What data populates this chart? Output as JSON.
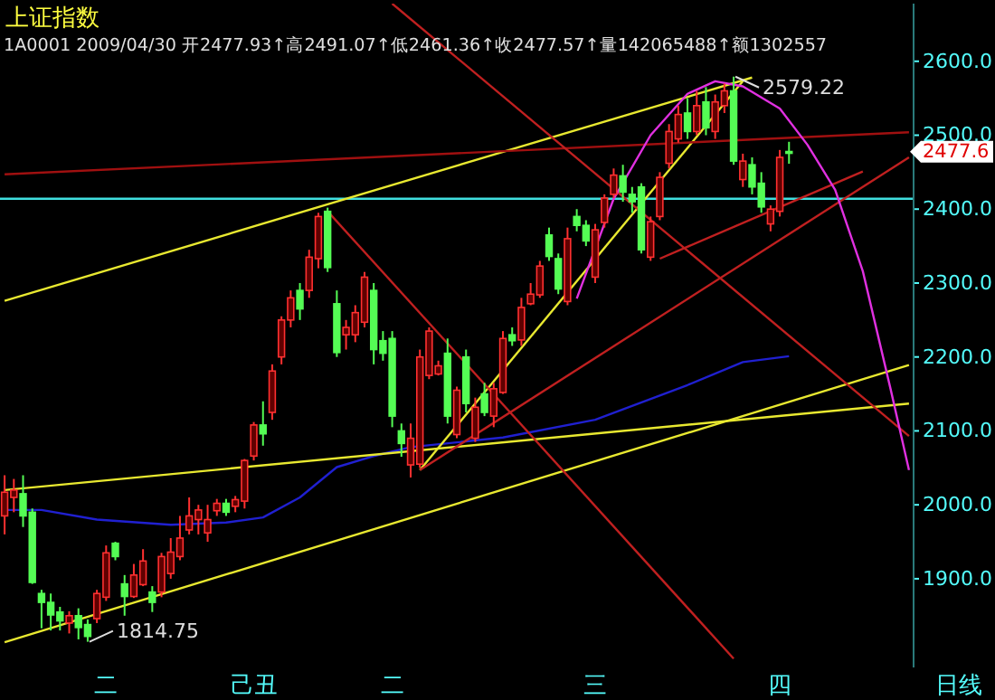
{
  "chart_data": {
    "type": "candlestick",
    "title": "上证指数",
    "subtitle": "1A0001 2009/04/30 开2477.93↑高2491.07↑低2461.36↑收2477.57↑量142065488↑额1302557",
    "categories": [
      null,
      null,
      null,
      null,
      null,
      null,
      null,
      null,
      null,
      null,
      null,
      "二",
      null,
      null,
      null,
      null,
      null,
      null,
      null,
      null,
      null,
      null,
      null,
      null,
      null,
      null,
      null,
      "己丑",
      null,
      null,
      null,
      null,
      null,
      null,
      null,
      null,
      null,
      null,
      null,
      null,
      null,
      null,
      "二",
      null,
      null,
      null,
      null,
      null,
      null,
      null,
      null,
      null,
      null,
      null,
      null,
      null,
      null,
      null,
      null,
      null,
      null,
      null,
      null,
      null,
      "三",
      null,
      null,
      null,
      null,
      null,
      null,
      null,
      null,
      null,
      null,
      null,
      null,
      null,
      null,
      null,
      null,
      null,
      null,
      null,
      "四",
      null,
      null,
      null,
      null,
      null,
      null,
      null,
      null,
      null,
      null,
      null,
      null,
      null,
      null
    ],
    "ohlc": [
      [
        1985,
        2040,
        1960,
        2017
      ],
      [
        2010,
        2035,
        1990,
        2020
      ],
      [
        2015,
        2040,
        1970,
        1985
      ],
      [
        1990,
        1995,
        1893,
        1895
      ],
      [
        1880,
        1885,
        1833,
        1868
      ],
      [
        1868,
        1880,
        1830,
        1851
      ],
      [
        1855,
        1862,
        1830,
        1843
      ],
      [
        1840,
        1856,
        1826,
        1850
      ],
      [
        1850,
        1860,
        1818,
        1834
      ],
      [
        1838,
        1845,
        1814.75,
        1822
      ],
      [
        1846,
        1885,
        1840,
        1880
      ],
      [
        1875,
        1945,
        1870,
        1935
      ],
      [
        1948,
        1950,
        1925,
        1930
      ],
      [
        1893,
        1905,
        1850,
        1876
      ],
      [
        1876,
        1920,
        1874,
        1905
      ],
      [
        1892,
        1940,
        1890,
        1924
      ],
      [
        1882,
        1890,
        1855,
        1868
      ],
      [
        1882,
        1935,
        1875,
        1930
      ],
      [
        1907,
        1955,
        1900,
        1936
      ],
      [
        1930,
        1985,
        1925,
        1955
      ],
      [
        1966,
        2010,
        1960,
        1985
      ],
      [
        1980,
        2000,
        1960,
        1993
      ],
      [
        1962,
        2000,
        1950,
        1980
      ],
      [
        1992,
        2008,
        1985,
        2002
      ],
      [
        2002,
        2008,
        1985,
        1990
      ],
      [
        1998,
        2012,
        1990,
        2007
      ],
      [
        2005,
        2062,
        1995,
        2060
      ],
      [
        2066,
        2112,
        2060,
        2108
      ],
      [
        2108,
        2140,
        2080,
        2096
      ],
      [
        2125,
        2190,
        2115,
        2181
      ],
      [
        2200,
        2255,
        2190,
        2250
      ],
      [
        2250,
        2290,
        2240,
        2280
      ],
      [
        2290,
        2300,
        2250,
        2265
      ],
      [
        2290,
        2345,
        2280,
        2335
      ],
      [
        2333,
        2395,
        2320,
        2390
      ],
      [
        2397,
        2402,
        2315,
        2321
      ],
      [
        2272,
        2290,
        2200,
        2206
      ],
      [
        2230,
        2250,
        2210,
        2240
      ],
      [
        2230,
        2270,
        2220,
        2260
      ],
      [
        2247,
        2315,
        2240,
        2308
      ],
      [
        2290,
        2300,
        2190,
        2210
      ],
      [
        2222,
        2235,
        2195,
        2205
      ],
      [
        2225,
        2235,
        2105,
        2120
      ],
      [
        2100,
        2110,
        2065,
        2083
      ],
      [
        2054,
        2110,
        2037,
        2090
      ],
      [
        2055,
        2210,
        2050,
        2200
      ],
      [
        2175,
        2240,
        2170,
        2235
      ],
      [
        2177,
        2195,
        2175,
        2188
      ],
      [
        2205,
        2225,
        2110,
        2120
      ],
      [
        2095,
        2160,
        2090,
        2155
      ],
      [
        2200,
        2210,
        2125,
        2137
      ],
      [
        2090,
        2145,
        2085,
        2132
      ],
      [
        2150,
        2165,
        2120,
        2125
      ],
      [
        2120,
        2165,
        2105,
        2157
      ],
      [
        2152,
        2235,
        2150,
        2225
      ],
      [
        2230,
        2240,
        2215,
        2222
      ],
      [
        2223,
        2280,
        2215,
        2267
      ],
      [
        2272,
        2300,
        2270,
        2285
      ],
      [
        2284,
        2330,
        2280,
        2323
      ],
      [
        2365,
        2375,
        2330,
        2336
      ],
      [
        2333,
        2340,
        2285,
        2292
      ],
      [
        2275,
        2375,
        2270,
        2360
      ],
      [
        2390,
        2400,
        2370,
        2378
      ],
      [
        2378,
        2385,
        2350,
        2357
      ],
      [
        2308,
        2380,
        2300,
        2372
      ],
      [
        2382,
        2420,
        2375,
        2415
      ],
      [
        2420,
        2455,
        2415,
        2446
      ],
      [
        2445,
        2460,
        2410,
        2423
      ],
      [
        2420,
        2430,
        2395,
        2410
      ],
      [
        2430,
        2435,
        2340,
        2345
      ],
      [
        2335,
        2390,
        2330,
        2383
      ],
      [
        2390,
        2450,
        2385,
        2443
      ],
      [
        2462,
        2515,
        2455,
        2505
      ],
      [
        2495,
        2540,
        2490,
        2528
      ],
      [
        2530,
        2550,
        2495,
        2505
      ],
      [
        2505,
        2560,
        2500,
        2540
      ],
      [
        2545,
        2565,
        2500,
        2510
      ],
      [
        2505,
        2555,
        2495,
        2545
      ],
      [
        2540,
        2570,
        2530,
        2560
      ],
      [
        2560,
        2579.22,
        2460,
        2465
      ],
      [
        2440,
        2475,
        2430,
        2465
      ],
      [
        2460,
        2470,
        2420,
        2430
      ],
      [
        2435,
        2450,
        2395,
        2403
      ],
      [
        2380,
        2405,
        2370,
        2400
      ],
      [
        2397,
        2480,
        2390,
        2470
      ],
      [
        2477.93,
        2491.07,
        2461.36,
        2477.57
      ],
      null,
      null,
      null,
      null,
      null,
      null,
      null,
      null,
      null,
      null,
      null,
      null,
      null
    ],
    "series": [
      {
        "type": "line",
        "color": "#2020d0",
        "values": [
          1993,
          null,
          null,
          null,
          1993,
          null,
          null,
          null,
          null,
          null,
          1980,
          null,
          null,
          null,
          null,
          null,
          null,
          null,
          1973,
          null,
          null,
          null,
          null,
          null,
          1976,
          null,
          null,
          null,
          1983,
          null,
          null,
          null,
          2010,
          null,
          null,
          null,
          2051,
          null,
          null,
          null,
          2066,
          null,
          null,
          null,
          2078,
          null,
          null,
          null,
          null,
          null,
          null,
          null,
          null,
          null,
          2091,
          null,
          null,
          null,
          null,
          null,
          null,
          null,
          null,
          null,
          2115,
          null,
          null,
          null,
          null,
          null,
          null,
          null,
          null,
          null,
          2162,
          null,
          null,
          null,
          null,
          null,
          2193,
          null,
          null,
          null,
          null,
          2201,
          null,
          null,
          null,
          null,
          null,
          null,
          null,
          null,
          null,
          null,
          null,
          null,
          null
        ]
      },
      {
        "type": "line",
        "color": "#e8e830",
        "values": [
          2020,
          null,
          null,
          null,
          null,
          null,
          null,
          null,
          null,
          null,
          null,
          null,
          null,
          null,
          null,
          null,
          null,
          null,
          null,
          null,
          null,
          null,
          null,
          null,
          null,
          null,
          null,
          null,
          null,
          null,
          null,
          null,
          null,
          null,
          null,
          null,
          null,
          null,
          null,
          null,
          null,
          null,
          null,
          null,
          null,
          null,
          null,
          null,
          null,
          null,
          null,
          null,
          null,
          null,
          null,
          null,
          null,
          null,
          null,
          null,
          null,
          null,
          null,
          null,
          null,
          null,
          null,
          null,
          null,
          null,
          null,
          null,
          null,
          null,
          null,
          null,
          null,
          null,
          null,
          null,
          null,
          null,
          null,
          null,
          null,
          null,
          null,
          null,
          null,
          null,
          null,
          null,
          null,
          null,
          null,
          null,
          null,
          null,
          2137
        ]
      },
      {
        "type": "line",
        "color": "#e8e830",
        "values": [
          1814,
          null,
          null,
          null,
          null,
          null,
          null,
          null,
          null,
          null,
          null,
          null,
          null,
          null,
          null,
          null,
          null,
          null,
          null,
          null,
          null,
          null,
          null,
          null,
          null,
          null,
          null,
          null,
          null,
          null,
          null,
          null,
          null,
          null,
          null,
          null,
          null,
          null,
          null,
          null,
          null,
          null,
          null,
          null,
          null,
          null,
          null,
          null,
          null,
          null,
          null,
          null,
          null,
          null,
          null,
          null,
          null,
          null,
          null,
          null,
          null,
          null,
          null,
          null,
          null,
          null,
          null,
          null,
          null,
          null,
          null,
          null,
          null,
          null,
          null,
          null,
          null,
          null,
          null,
          null,
          null,
          null,
          null,
          null,
          null,
          null,
          null,
          null,
          null,
          null,
          null,
          null,
          null,
          null,
          null,
          null,
          null,
          null,
          2189
        ]
      },
      {
        "type": "line",
        "color": "#e8e830",
        "values": [
          2276,
          null,
          null,
          null,
          null,
          null,
          null,
          null,
          null,
          null,
          null,
          null,
          null,
          null,
          null,
          null,
          null,
          null,
          null,
          null,
          null,
          null,
          null,
          null,
          null,
          null,
          null,
          null,
          null,
          null,
          null,
          null,
          null,
          null,
          null,
          null,
          null,
          null,
          null,
          null,
          null,
          null,
          null,
          null,
          null,
          null,
          null,
          null,
          null,
          null,
          null,
          null,
          null,
          null,
          null,
          null,
          null,
          null,
          null,
          null,
          null,
          null,
          null,
          null,
          null,
          null,
          null,
          null,
          null,
          null,
          null,
          null,
          null,
          null,
          null,
          null,
          null,
          null,
          null,
          null,
          null,
          2578,
          null,
          null,
          null,
          null,
          null,
          null,
          null,
          null,
          null,
          null,
          null,
          null,
          null,
          null,
          null,
          null,
          null
        ]
      },
      {
        "type": "line",
        "color": "#e8e830",
        "values": [
          null,
          null,
          null,
          null,
          null,
          null,
          null,
          null,
          null,
          null,
          null,
          null,
          null,
          null,
          null,
          null,
          null,
          null,
          null,
          null,
          null,
          null,
          null,
          null,
          null,
          null,
          null,
          null,
          null,
          null,
          null,
          null,
          null,
          null,
          null,
          null,
          null,
          null,
          null,
          null,
          null,
          null,
          null,
          null,
          null,
          2047,
          null,
          null,
          null,
          null,
          null,
          null,
          null,
          null,
          null,
          null,
          null,
          null,
          null,
          null,
          null,
          null,
          null,
          null,
          null,
          null,
          null,
          null,
          null,
          null,
          null,
          null,
          null,
          null,
          null,
          null,
          null,
          null,
          null,
          null,
          2573,
          null,
          null,
          null,
          null,
          null,
          null,
          null,
          null,
          null,
          null,
          null,
          null,
          null,
          null,
          null,
          null,
          null,
          null
        ]
      },
      {
        "type": "line",
        "color": "#a01010",
        "values": [
          2447,
          null,
          null,
          null,
          null,
          null,
          null,
          null,
          null,
          null,
          null,
          null,
          null,
          null,
          null,
          null,
          null,
          null,
          null,
          null,
          null,
          null,
          null,
          null,
          null,
          null,
          null,
          null,
          null,
          null,
          null,
          null,
          null,
          null,
          null,
          null,
          null,
          null,
          null,
          null,
          null,
          null,
          null,
          null,
          null,
          null,
          null,
          null,
          null,
          null,
          null,
          null,
          null,
          null,
          null,
          null,
          null,
          null,
          null,
          null,
          null,
          null,
          null,
          null,
          null,
          null,
          null,
          null,
          null,
          null,
          null,
          null,
          null,
          null,
          null,
          null,
          null,
          null,
          null,
          null,
          null,
          null,
          null,
          null,
          null,
          null,
          null,
          null,
          null,
          null,
          null,
          null,
          null,
          null,
          null,
          null,
          null,
          null,
          2504
        ]
      },
      {
        "type": "line",
        "color": "#c02020",
        "values": [
          null,
          null,
          null,
          null,
          null,
          null,
          null,
          null,
          null,
          null,
          null,
          null,
          null,
          null,
          null,
          null,
          null,
          null,
          null,
          null,
          null,
          null,
          null,
          null,
          null,
          null,
          null,
          null,
          null,
          null,
          null,
          null,
          null,
          null,
          null,
          2397,
          null,
          null,
          null,
          null,
          null,
          null,
          null,
          null,
          null,
          null,
          null,
          null,
          null,
          null,
          null,
          null,
          null,
          null,
          null,
          null,
          null,
          null,
          null,
          null,
          null,
          null,
          null,
          null,
          null,
          null,
          null,
          null,
          null,
          null,
          null,
          null,
          null,
          null,
          null,
          null,
          null,
          null,
          null,
          1792,
          null,
          null,
          null,
          null,
          null,
          null,
          null,
          null,
          null,
          null,
          null,
          null,
          null,
          null,
          null,
          null,
          null,
          null,
          null
        ]
      },
      {
        "type": "line",
        "color": "#c02020",
        "values": [
          null,
          null,
          null,
          null,
          null,
          null,
          null,
          null,
          null,
          null,
          null,
          null,
          null,
          null,
          null,
          null,
          null,
          null,
          null,
          null,
          null,
          null,
          null,
          null,
          null,
          null,
          null,
          null,
          null,
          null,
          null,
          null,
          null,
          null,
          null,
          null,
          null,
          null,
          null,
          null,
          null,
          null,
          null,
          null,
          null,
          2047,
          null,
          null,
          null,
          null,
          null,
          null,
          null,
          null,
          null,
          null,
          null,
          null,
          null,
          null,
          null,
          null,
          null,
          null,
          null,
          null,
          null,
          null,
          null,
          null,
          null,
          null,
          null,
          null,
          null,
          null,
          null,
          null,
          null,
          null,
          null,
          null,
          null,
          null,
          null,
          null,
          null,
          null,
          null,
          null,
          null,
          null,
          null,
          null,
          null,
          null,
          null,
          null,
          2470
        ]
      },
      {
        "type": "line",
        "color": "#c02020",
        "values": [
          null,
          null,
          null,
          null,
          null,
          null,
          null,
          null,
          null,
          null,
          null,
          null,
          null,
          null,
          null,
          null,
          null,
          null,
          null,
          null,
          null,
          null,
          null,
          null,
          null,
          null,
          null,
          null,
          null,
          null,
          null,
          null,
          null,
          null,
          null,
          null,
          null,
          null,
          null,
          null,
          null,
          null,
          2678,
          null,
          null,
          null,
          null,
          null,
          null,
          null,
          null,
          null,
          null,
          null,
          null,
          null,
          null,
          null,
          null,
          null,
          null,
          null,
          null,
          null,
          null,
          null,
          null,
          null,
          null,
          null,
          null,
          null,
          null,
          null,
          null,
          null,
          null,
          null,
          null,
          null,
          null,
          null,
          null,
          null,
          null,
          null,
          null,
          null,
          null,
          null,
          null,
          null,
          null,
          null,
          null,
          null,
          null,
          null,
          2093
        ]
      },
      {
        "type": "line",
        "color": "#c02020",
        "values": [
          null,
          null,
          null,
          null,
          null,
          null,
          null,
          null,
          null,
          null,
          null,
          null,
          null,
          null,
          null,
          null,
          null,
          null,
          null,
          null,
          null,
          null,
          null,
          null,
          null,
          null,
          null,
          null,
          null,
          null,
          null,
          null,
          null,
          null,
          null,
          null,
          null,
          null,
          null,
          null,
          null,
          null,
          null,
          null,
          null,
          null,
          null,
          null,
          null,
          null,
          null,
          null,
          null,
          null,
          null,
          null,
          null,
          null,
          null,
          null,
          null,
          null,
          null,
          null,
          null,
          null,
          null,
          null,
          null,
          null,
          null,
          2333,
          null,
          null,
          null,
          null,
          null,
          null,
          null,
          null,
          null,
          null,
          null,
          null,
          null,
          null,
          null,
          null,
          null,
          null,
          null,
          null,
          null,
          2451,
          null,
          null,
          null,
          null,
          null
        ]
      },
      {
        "type": "line",
        "color": "#e030e0",
        "values": [
          null,
          null,
          null,
          null,
          null,
          null,
          null,
          null,
          null,
          null,
          null,
          null,
          null,
          null,
          null,
          null,
          null,
          null,
          null,
          null,
          null,
          null,
          null,
          null,
          null,
          null,
          null,
          null,
          null,
          null,
          null,
          null,
          null,
          null,
          null,
          null,
          null,
          null,
          null,
          null,
          null,
          null,
          null,
          null,
          null,
          null,
          null,
          null,
          null,
          null,
          null,
          null,
          null,
          null,
          null,
          null,
          null,
          null,
          null,
          null,
          null,
          null,
          2279,
          null,
          null,
          null,
          2414,
          null,
          null,
          null,
          2500,
          null,
          null,
          null,
          2556,
          null,
          null,
          2573,
          null,
          null,
          2566,
          null,
          null,
          null,
          2536,
          null,
          null,
          2487,
          null,
          null,
          2426,
          null,
          null,
          2316,
          null,
          null,
          2157,
          null,
          2047
        ]
      }
    ],
    "ref_lines": [
      {
        "axis": "y",
        "value": 2414,
        "color": "#40e0e0"
      }
    ],
    "ylim": [
      1780,
      2678
    ],
    "yticks": [
      {
        "value": 1900,
        "label": "1900.0"
      },
      {
        "value": 2000,
        "label": "2000.0"
      },
      {
        "value": 2100,
        "label": "2100.0"
      },
      {
        "value": 2200,
        "label": "2200.0"
      },
      {
        "value": 2300,
        "label": "2300.0"
      },
      {
        "value": 2400,
        "label": "2400.0"
      },
      {
        "value": 2500,
        "label": "2500.0"
      },
      {
        "value": 2600,
        "label": "2600.0"
      }
    ],
    "annotations": [
      "1814.75",
      "2579.22",
      "2477.6",
      "日线"
    ],
    "grid": false
  }
}
